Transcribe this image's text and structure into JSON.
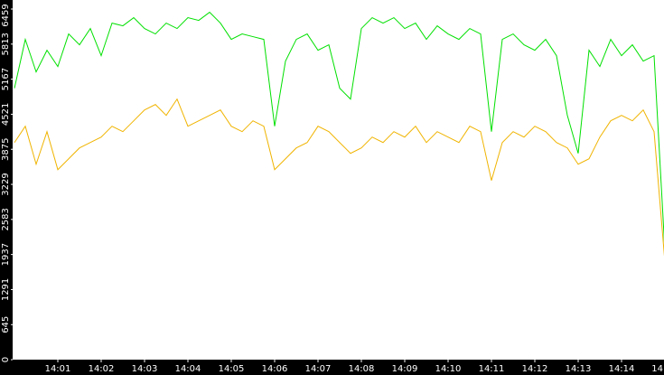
{
  "chart_data": {
    "type": "line",
    "x": [
      0,
      0.25,
      0.5,
      0.75,
      1,
      1.25,
      1.5,
      1.75,
      2,
      2.25,
      2.5,
      2.75,
      3,
      3.25,
      3.5,
      3.75,
      4,
      4.25,
      4.5,
      4.75,
      5,
      5.25,
      5.5,
      5.75,
      6,
      6.25,
      6.5,
      6.75,
      7,
      7.25,
      7.5,
      7.75,
      8,
      8.25,
      8.5,
      8.75,
      9,
      9.25,
      9.5,
      9.75,
      10,
      10.25,
      10.5,
      10.75,
      11,
      11.25,
      11.5,
      11.75,
      12,
      12.25,
      12.5,
      12.75,
      13,
      13.25,
      13.5,
      13.75,
      14,
      14.25,
      14.5,
      14.75,
      15
    ],
    "series": [
      {
        "color": "#00e000",
        "values": [
          5000,
          5900,
          5300,
          5700,
          5400,
          6000,
          5800,
          6100,
          5600,
          6200,
          6150,
          6300,
          6100,
          6000,
          6200,
          6100,
          6300,
          6250,
          6400,
          6200,
          5900,
          6000,
          5950,
          5900,
          4300,
          5500,
          5900,
          6000,
          5700,
          5800,
          5000,
          4800,
          6100,
          6300,
          6200,
          6300,
          6100,
          6200,
          5900,
          6150,
          6000,
          5900,
          6100,
          6000,
          4200,
          5900,
          6000,
          5800,
          5700,
          5900,
          5600,
          4500,
          3800,
          5700,
          5400,
          5900,
          5600,
          5800,
          5500,
          5600,
          2000
        ]
      },
      {
        "color": "#f0b400",
        "values": [
          4000,
          4300,
          3600,
          4200,
          3500,
          3700,
          3900,
          4000,
          4100,
          4300,
          4200,
          4400,
          4600,
          4700,
          4500,
          4800,
          4300,
          4400,
          4500,
          4600,
          4300,
          4200,
          4400,
          4300,
          3500,
          3700,
          3900,
          4000,
          4300,
          4200,
          4000,
          3800,
          3900,
          4100,
          4000,
          4200,
          4100,
          4300,
          4000,
          4200,
          4100,
          4000,
          4300,
          4200,
          3300,
          4000,
          4200,
          4100,
          4300,
          4200,
          4000,
          3900,
          3600,
          3700,
          4100,
          4400,
          4500,
          4400,
          4600,
          4200,
          1800
        ]
      }
    ],
    "xlim": [
      0,
      15
    ],
    "xticks": [
      {
        "value": 1,
        "label": "14:01"
      },
      {
        "value": 2,
        "label": "14:02"
      },
      {
        "value": 3,
        "label": "14:03"
      },
      {
        "value": 4,
        "label": "14:04"
      },
      {
        "value": 5,
        "label": "14:05"
      },
      {
        "value": 6,
        "label": "14:06"
      },
      {
        "value": 7,
        "label": "14:07"
      },
      {
        "value": 8,
        "label": "14:08"
      },
      {
        "value": 9,
        "label": "14:09"
      },
      {
        "value": 10,
        "label": "14:10"
      },
      {
        "value": 11,
        "label": "14:11"
      },
      {
        "value": 12,
        "label": "14:12"
      },
      {
        "value": 13,
        "label": "14:13"
      },
      {
        "value": 14,
        "label": "14:14"
      },
      {
        "value": 15,
        "label": "14"
      }
    ],
    "ylim": [
      0,
      6459
    ],
    "yticks": [
      0,
      645,
      1291,
      1937,
      2583,
      3229,
      3875,
      4521,
      5167,
      5813,
      6459
    ]
  }
}
